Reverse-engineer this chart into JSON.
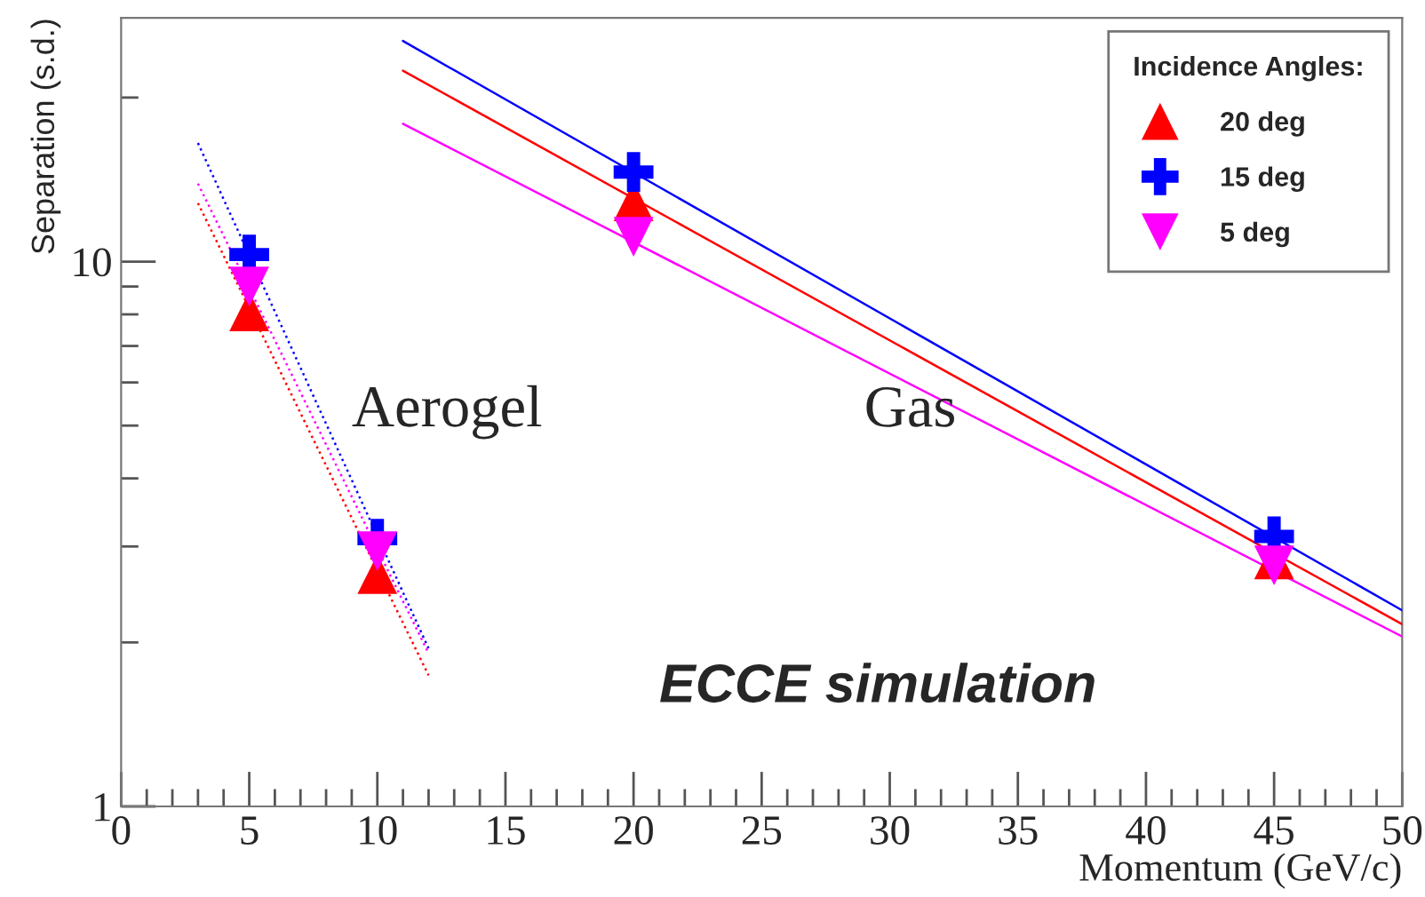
{
  "chart_data": {
    "type": "scatter",
    "xlabel": "Momentum (GeV/c)",
    "ylabel": "Separation (s.d.)",
    "legend_title": "Incidence Angles:",
    "log": "y",
    "xlim": [
      0,
      50
    ],
    "ylim": [
      1,
      28
    ],
    "xticks": [
      0,
      5,
      10,
      15,
      20,
      25,
      30,
      35,
      40,
      45,
      50
    ],
    "yticks": [
      1,
      10
    ],
    "grid": false,
    "legend": "top right",
    "annotations": [
      "Aerogel",
      "Gas",
      "ECCE simulation"
    ],
    "series": [
      {
        "name": "20 deg",
        "marker": "triangle",
        "color": "#ff0000",
        "x": [
          5,
          10,
          20,
          45
        ],
        "values": [
          8.1,
          2.67,
          12.9,
          2.84
        ]
      },
      {
        "name": "15 deg",
        "marker": "cross",
        "color": "#0000ff",
        "x": [
          5,
          10,
          20,
          45
        ],
        "values": [
          10.3,
          3.1,
          14.6,
          3.13
        ]
      },
      {
        "name": "5 deg",
        "marker": "triangle_down",
        "color": "#ff00ff",
        "x": [
          5,
          10,
          20,
          45
        ],
        "values": [
          9.0,
          2.94,
          11.1,
          2.77
        ]
      },
      {
        "type": "line",
        "color": "#0000ff",
        "line_style": "dotted",
        "x": [
          3,
          12
        ],
        "values": [
          16.5,
          1.95
        ]
      },
      {
        "type": "line",
        "color": "#ff00ff",
        "line_style": "dotted",
        "x": [
          3,
          12
        ],
        "values": [
          13.9,
          1.91
        ]
      },
      {
        "type": "line",
        "color": "#ff0000",
        "line_style": "dotted",
        "x": [
          3,
          12
        ],
        "values": [
          12.8,
          1.74
        ]
      },
      {
        "type": "line",
        "color": "#0000ff",
        "line_style": "solid",
        "x": [
          11,
          50
        ],
        "values": [
          25.4,
          2.29
        ]
      },
      {
        "type": "line",
        "color": "#ff0000",
        "line_style": "solid",
        "x": [
          11,
          50
        ],
        "values": [
          22.4,
          2.16
        ]
      },
      {
        "type": "line",
        "color": "#ff00ff",
        "line_style": "solid",
        "x": [
          11,
          50
        ],
        "values": [
          17.9,
          2.05
        ]
      }
    ]
  }
}
